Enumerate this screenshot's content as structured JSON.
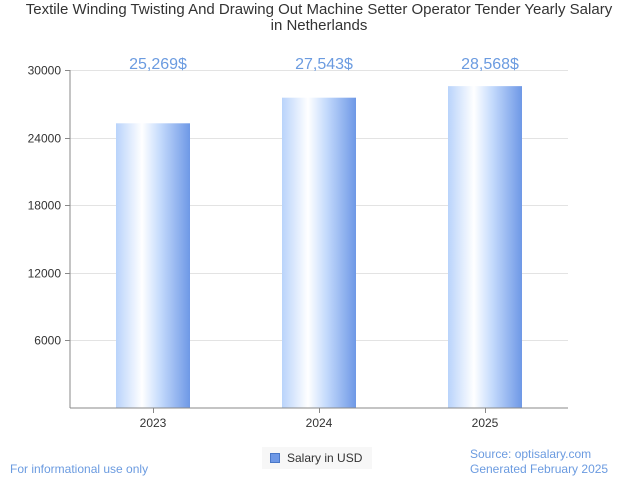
{
  "chart_data": {
    "type": "bar",
    "title_lines": [
      "Textile Winding Twisting And Drawing Out Machine Setter Operator Tender Yearly Salary",
      "in Netherlands"
    ],
    "categories": [
      "2023",
      "2024",
      "2025"
    ],
    "series": [
      {
        "name": "Salary in USD",
        "values": [
          25269,
          27543,
          28568
        ]
      }
    ],
    "value_labels": [
      "25,269$",
      "27,543$",
      "28,568$"
    ],
    "y_ticks": [
      6000,
      12000,
      18000,
      24000,
      30000
    ],
    "ylim": [
      0,
      30000
    ],
    "grid": true,
    "legend": "bottom-center",
    "colors": {
      "bar_light": "#ffffff",
      "bar_mid": "#b9d3fb",
      "bar_dark": "#6e98e6",
      "label": "#6b9be0"
    }
  },
  "footer": {
    "disclaimer": "For informational use only",
    "source": "Source: optisalary.com",
    "generated": "Generated February 2025"
  }
}
